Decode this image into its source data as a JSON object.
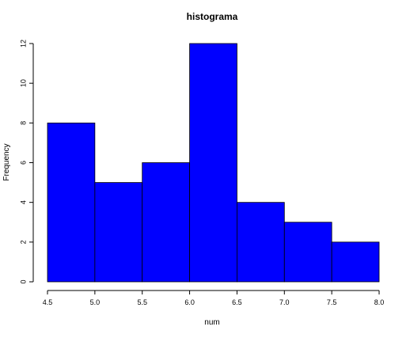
{
  "chart_data": {
    "type": "bar",
    "title": "histograma",
    "xlabel": "num",
    "ylabel": "Frequency",
    "bins": [
      {
        "start": 4.5,
        "end": 5.0,
        "count": 8
      },
      {
        "start": 5.0,
        "end": 5.5,
        "count": 5
      },
      {
        "start": 5.5,
        "end": 6.0,
        "count": 6
      },
      {
        "start": 6.0,
        "end": 6.5,
        "count": 12
      },
      {
        "start": 6.5,
        "end": 7.0,
        "count": 4
      },
      {
        "start": 7.0,
        "end": 7.5,
        "count": 3
      },
      {
        "start": 7.5,
        "end": 8.0,
        "count": 2
      }
    ],
    "x_ticks": [
      "4.5",
      "5.0",
      "5.5",
      "6.0",
      "6.5",
      "7.0",
      "7.5",
      "8.0"
    ],
    "y_ticks": [
      "0",
      "2",
      "4",
      "6",
      "8",
      "10",
      "12"
    ],
    "xlim": [
      4.5,
      8.0
    ],
    "ylim": [
      0,
      12
    ],
    "grid": false,
    "bar_color": "#0000ff",
    "border_color": "#000000"
  }
}
